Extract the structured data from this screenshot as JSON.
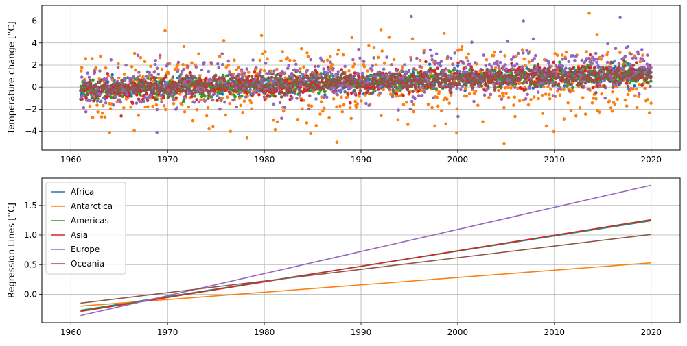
{
  "figure": {
    "background": "#ffffff"
  },
  "chart_data": [
    {
      "type": "scatter",
      "xlabel": "",
      "ylabel": "Temperature change [°C]",
      "xlim": [
        1957,
        2023
      ],
      "ylim": [
        -5.7,
        7.4
      ],
      "xticks": [
        1960,
        1970,
        1980,
        1990,
        2000,
        2010,
        2020
      ],
      "yticks": [
        -4,
        -2,
        0,
        2,
        4,
        6
      ],
      "grid": true,
      "x_range": [
        1961,
        2020
      ],
      "series": [
        {
          "name": "Africa",
          "color": "#1f77b4",
          "trend": [
            -0.27,
            1.24
          ],
          "spread": 0.45
        },
        {
          "name": "Antarctica",
          "color": "#ff7f0e",
          "trend": [
            -0.2,
            0.53
          ],
          "spread": 1.6
        },
        {
          "name": "Americas",
          "color": "#2ca02c",
          "trend": [
            -0.28,
            1.25
          ],
          "spread": 0.45
        },
        {
          "name": "Asia",
          "color": "#d62728",
          "trend": [
            -0.29,
            1.26
          ],
          "spread": 0.55
        },
        {
          "name": "Europe",
          "color": "#9467bd",
          "trend": [
            -0.36,
            1.84
          ],
          "spread": 1.1
        },
        {
          "name": "Oceania",
          "color": "#8c564b",
          "trend": [
            -0.15,
            1.01
          ],
          "spread": 0.4
        }
      ],
      "notable_points": [
        {
          "x": 1995.2,
          "y": 6.4,
          "series": "Europe"
        },
        {
          "x": 2013.6,
          "y": 6.7,
          "series": "Antarctica"
        },
        {
          "x": 2006.8,
          "y": 6.0,
          "series": "Europe"
        },
        {
          "x": 2016.8,
          "y": 6.3,
          "series": "Europe"
        },
        {
          "x": 1987.5,
          "y": -5.0,
          "series": "Antarctica"
        },
        {
          "x": 2004.8,
          "y": -5.1,
          "series": "Antarctica"
        },
        {
          "x": 1984.8,
          "y": -4.2,
          "series": "Antarctica"
        },
        {
          "x": 1968.9,
          "y": -4.1,
          "series": "Europe"
        }
      ]
    },
    {
      "type": "line",
      "xlabel": "",
      "ylabel": "Regression Lines [°C]",
      "xlim": [
        1957,
        2023
      ],
      "ylim": [
        -0.48,
        1.96
      ],
      "xticks": [
        1960,
        1970,
        1980,
        1990,
        2000,
        2010,
        2020
      ],
      "yticks": [
        0.0,
        0.5,
        1.0,
        1.5
      ],
      "ytick_labels": [
        "0.0",
        "0.5",
        "1.0",
        "1.5"
      ],
      "grid": true,
      "legend": "top-left",
      "series": [
        {
          "name": "Africa",
          "color": "#1f77b4",
          "x": [
            1961,
            2020
          ],
          "y": [
            -0.27,
            1.24
          ]
        },
        {
          "name": "Antarctica",
          "color": "#ff7f0e",
          "x": [
            1961,
            2020
          ],
          "y": [
            -0.2,
            0.53
          ]
        },
        {
          "name": "Americas",
          "color": "#2ca02c",
          "x": [
            1961,
            2020
          ],
          "y": [
            -0.28,
            1.25
          ]
        },
        {
          "name": "Asia",
          "color": "#d62728",
          "x": [
            1961,
            2020
          ],
          "y": [
            -0.29,
            1.26
          ]
        },
        {
          "name": "Europe",
          "color": "#9467bd",
          "x": [
            1961,
            2020
          ],
          "y": [
            -0.36,
            1.84
          ]
        },
        {
          "name": "Oceania",
          "color": "#8c564b",
          "x": [
            1961,
            2020
          ],
          "y": [
            -0.15,
            1.01
          ]
        }
      ]
    }
  ]
}
